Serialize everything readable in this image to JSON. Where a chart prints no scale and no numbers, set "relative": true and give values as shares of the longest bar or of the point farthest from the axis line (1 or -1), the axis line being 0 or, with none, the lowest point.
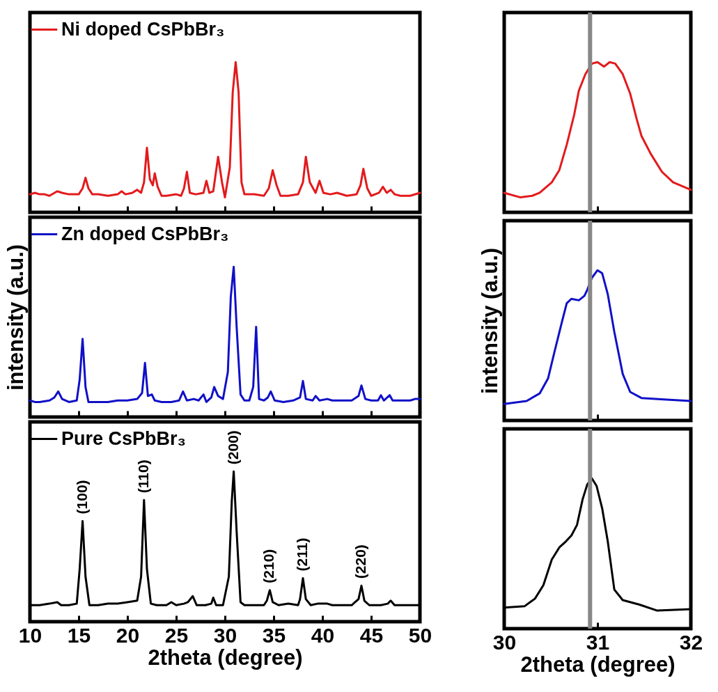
{
  "chart_data": [
    {
      "type": "line",
      "relative": true,
      "legend": "top left",
      "tick_labels": false,
      "xlim": [
        10,
        50
      ],
      "xticks": [
        10,
        15,
        20,
        25,
        30,
        35,
        40,
        45,
        50
      ],
      "series": [
        {
          "name": "Ni doped CsPbBr₃",
          "color": "#e31a1c",
          "x": [
            10,
            10.5,
            11,
            11.5,
            12,
            12.8,
            13.3,
            14,
            15,
            15.4,
            15.7,
            16,
            16.4,
            17,
            18,
            19,
            19.4,
            19.8,
            20.5,
            21,
            21.4,
            21.7,
            22,
            22.3,
            22.6,
            22.8,
            23.1,
            23.5,
            24,
            25,
            25.5,
            25.8,
            26.1,
            26.4,
            27,
            27.8,
            28.1,
            28.4,
            28.8,
            29.3,
            29.7,
            30,
            30.5,
            30.8,
            31.1,
            31.4,
            31.7,
            32,
            33,
            34,
            34.5,
            34.9,
            35.3,
            35.7,
            36.5,
            37.5,
            38,
            38.3,
            38.7,
            39.3,
            39.7,
            40.1,
            40.8,
            41.5,
            42.5,
            43.5,
            43.9,
            44.2,
            44.6,
            45,
            45.8,
            46.2,
            46.6,
            47,
            47.4,
            48,
            49,
            50
          ],
          "values": [
            0.12,
            0.13,
            0.12,
            0.12,
            0.11,
            0.14,
            0.13,
            0.12,
            0.12,
            0.16,
            0.23,
            0.16,
            0.12,
            0.12,
            0.11,
            0.12,
            0.14,
            0.12,
            0.13,
            0.15,
            0.13,
            0.2,
            0.43,
            0.22,
            0.18,
            0.26,
            0.17,
            0.11,
            0.11,
            0.12,
            0.11,
            0.16,
            0.27,
            0.13,
            0.12,
            0.13,
            0.21,
            0.13,
            0.14,
            0.37,
            0.2,
            0.1,
            0.3,
            0.8,
            1,
            0.8,
            0.2,
            0.12,
            0.12,
            0.11,
            0.16,
            0.28,
            0.18,
            0.11,
            0.11,
            0.12,
            0.2,
            0.37,
            0.2,
            0.13,
            0.21,
            0.13,
            0.12,
            0.13,
            0.11,
            0.12,
            0.18,
            0.29,
            0.16,
            0.11,
            0.13,
            0.17,
            0.13,
            0.15,
            0.12,
            0.11,
            0.11,
            0.13
          ]
        }
      ]
    },
    {
      "type": "line",
      "relative": true,
      "legend": "top left",
      "tick_labels": false,
      "ylabel": "intensity (a.u.)",
      "xlim": [
        10,
        50
      ],
      "xticks": [
        10,
        15,
        20,
        25,
        30,
        35,
        40,
        45,
        50
      ],
      "series": [
        {
          "name": "Zn doped CsPbBr₃",
          "color": "#1010c8",
          "x": [
            10,
            10.5,
            11,
            12,
            12.5,
            12.9,
            13.3,
            14,
            14.8,
            15.1,
            15.4,
            15.7,
            16,
            17,
            18,
            19,
            20,
            21,
            21.5,
            21.8,
            22.1,
            22.5,
            22.8,
            23.5,
            24.5,
            25.3,
            25.7,
            26.1,
            26.8,
            27.3,
            27.8,
            28.1,
            28.6,
            28.9,
            29.3,
            29.8,
            30.3,
            30.6,
            30.9,
            31.2,
            31.6,
            32,
            32.5,
            32.9,
            33.2,
            33.5,
            34,
            34.4,
            34.7,
            35.1,
            36,
            37,
            37.7,
            38,
            38.3,
            39,
            39.3,
            39.7,
            40.5,
            41,
            42,
            43,
            43.7,
            44,
            44.4,
            45,
            45.7,
            46,
            46.3,
            46.9,
            47.2,
            48,
            49,
            49.5,
            50
          ],
          "values": [
            0.11,
            0.1,
            0.1,
            0.11,
            0.13,
            0.17,
            0.12,
            0.1,
            0.11,
            0.25,
            0.52,
            0.2,
            0.1,
            0.1,
            0.1,
            0.11,
            0.11,
            0.12,
            0.16,
            0.36,
            0.14,
            0.15,
            0.11,
            0.1,
            0.1,
            0.11,
            0.17,
            0.11,
            0.12,
            0.11,
            0.15,
            0.1,
            0.13,
            0.2,
            0.14,
            0.12,
            0.3,
            0.8,
            1,
            0.6,
            0.15,
            0.11,
            0.11,
            0.2,
            0.6,
            0.12,
            0.11,
            0.13,
            0.17,
            0.11,
            0.1,
            0.11,
            0.13,
            0.24,
            0.12,
            0.11,
            0.14,
            0.11,
            0.12,
            0.11,
            0.11,
            0.11,
            0.14,
            0.21,
            0.12,
            0.11,
            0.11,
            0.145,
            0.11,
            0.145,
            0.11,
            0.11,
            0.11,
            0.12,
            0.12
          ]
        }
      ]
    },
    {
      "type": "line",
      "relative": true,
      "legend": "top left",
      "tick_labels": "x",
      "xlabel": "2theta (degree)",
      "xlim": [
        10,
        50
      ],
      "xticks": [
        10,
        15,
        20,
        25,
        30,
        35,
        40,
        45,
        50
      ],
      "series": [
        {
          "name": "Pure CsPbBr₃",
          "color": "#000000",
          "x": [
            10,
            11,
            12,
            12.8,
            13.2,
            14,
            14.8,
            15.1,
            15.4,
            15.7,
            16.1,
            17,
            18,
            19,
            20,
            21,
            21.4,
            21.7,
            22,
            22.4,
            23,
            24,
            24.5,
            25,
            25.8,
            26.2,
            26.7,
            27.1,
            28,
            28.6,
            28.8,
            29.1,
            29.8,
            30.4,
            30.7,
            30.9,
            31.2,
            31.6,
            32,
            33,
            34,
            34.3,
            34.6,
            34.9,
            35.5,
            36.5,
            37.5,
            37.7,
            38,
            38.3,
            38.8,
            39.5,
            40.5,
            41,
            42,
            43,
            43.7,
            44,
            44.3,
            44.8,
            46,
            46.7,
            47,
            47.4,
            48,
            49,
            50
          ],
          "values": [
            0.11,
            0.11,
            0.12,
            0.13,
            0.11,
            0.11,
            0.12,
            0.35,
            0.67,
            0.3,
            0.11,
            0.11,
            0.12,
            0.12,
            0.13,
            0.14,
            0.3,
            0.81,
            0.35,
            0.12,
            0.11,
            0.11,
            0.13,
            0.11,
            0.12,
            0.13,
            0.17,
            0.11,
            0.11,
            0.12,
            0.16,
            0.11,
            0.11,
            0.3,
            0.8,
            1,
            0.6,
            0.13,
            0.11,
            0.11,
            0.11,
            0.14,
            0.21,
            0.13,
            0.11,
            0.12,
            0.11,
            0.15,
            0.29,
            0.15,
            0.11,
            0.12,
            0.12,
            0.11,
            0.11,
            0.11,
            0.15,
            0.24,
            0.14,
            0.11,
            0.11,
            0.12,
            0.14,
            0.11,
            0.11,
            0.11,
            0.11
          ]
        }
      ],
      "annotations": [
        {
          "text": "(100)",
          "x": 15.4,
          "y": 0.67
        },
        {
          "text": "(110)",
          "x": 21.7,
          "y": 0.81
        },
        {
          "text": "(200)",
          "x": 30.9,
          "y": 1
        },
        {
          "text": "(210)",
          "x": 34.6,
          "y": 0.21
        },
        {
          "text": "(211)",
          "x": 38.0,
          "y": 0.29
        },
        {
          "text": "(220)",
          "x": 44.0,
          "y": 0.24
        }
      ]
    },
    {
      "type": "line",
      "relative": true,
      "tick_labels": false,
      "xlim": [
        30,
        32
      ],
      "xticks": [
        30,
        31,
        32
      ],
      "ref_lines": [
        {
          "axis": "x",
          "value": 30.92,
          "color": "#888888"
        }
      ],
      "series": [
        {
          "color": "#e31a1c",
          "x": [
            30.0,
            30.17,
            30.3,
            30.38,
            30.51,
            30.59,
            30.67,
            30.75,
            30.8,
            30.87,
            30.94,
            31.0,
            31.07,
            31.13,
            31.19,
            31.27,
            31.35,
            31.42,
            31.47,
            31.57,
            31.69,
            31.81,
            32.0
          ],
          "values": [
            0.13,
            0.1,
            0.11,
            0.13,
            0.2,
            0.28,
            0.45,
            0.65,
            0.81,
            0.92,
            0.99,
            1.0,
            0.97,
            1.0,
            0.99,
            0.92,
            0.79,
            0.62,
            0.51,
            0.39,
            0.27,
            0.2,
            0.15
          ]
        }
      ]
    },
    {
      "type": "line",
      "relative": true,
      "tick_labels": false,
      "ylabel": "intensity (a.u.)",
      "xlim": [
        30,
        32
      ],
      "xticks": [
        30,
        31,
        32
      ],
      "ref_lines": [
        {
          "axis": "x",
          "value": 30.92,
          "color": "#888888"
        }
      ],
      "series": [
        {
          "color": "#1010c8",
          "x": [
            30.0,
            30.24,
            30.38,
            30.47,
            30.54,
            30.62,
            30.67,
            30.72,
            30.8,
            30.86,
            30.89,
            30.94,
            31.0,
            31.05,
            31.11,
            31.18,
            31.27,
            31.35,
            31.47,
            31.71,
            32.0
          ],
          "values": [
            0.11,
            0.13,
            0.18,
            0.28,
            0.46,
            0.66,
            0.78,
            0.81,
            0.8,
            0.83,
            0.87,
            0.95,
            1.0,
            0.98,
            0.84,
            0.59,
            0.31,
            0.19,
            0.15,
            0.14,
            0.13
          ]
        }
      ]
    },
    {
      "type": "line",
      "relative": true,
      "tick_labels": "x",
      "xlabel": "2theta (degree)",
      "xlim": [
        30,
        32
      ],
      "xticks": [
        30,
        31,
        32
      ],
      "ref_lines": [
        {
          "axis": "x",
          "value": 30.92,
          "color": "#888888"
        }
      ],
      "series": [
        {
          "color": "#000000",
          "x": [
            30.0,
            30.22,
            30.33,
            30.42,
            30.51,
            30.59,
            30.66,
            30.72,
            30.78,
            30.84,
            30.89,
            30.94,
            30.99,
            31.05,
            31.11,
            31.18,
            31.27,
            31.45,
            31.64,
            32.0
          ],
          "values": [
            0.14,
            0.15,
            0.2,
            0.29,
            0.46,
            0.54,
            0.58,
            0.62,
            0.69,
            0.86,
            0.96,
            1.0,
            0.95,
            0.8,
            0.58,
            0.26,
            0.19,
            0.16,
            0.12,
            0.13
          ]
        }
      ]
    }
  ]
}
